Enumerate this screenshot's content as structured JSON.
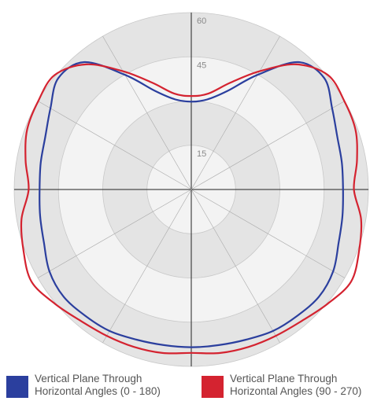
{
  "chart_data": {
    "type": "polar",
    "radial_axis": {
      "min": 0,
      "max": 60,
      "ticks": [
        15,
        45,
        60
      ],
      "grid": [
        15,
        30,
        45,
        60
      ]
    },
    "angular_grid_step_deg": 30,
    "angle_convention": "0 deg at bottom (nadir), 180 deg at top",
    "series": [
      {
        "name": "Vertical Plane Through\nHorizontal Angles (0 - 180)",
        "color": "#2b3f9e",
        "angles": [
          0,
          10,
          20,
          30,
          40,
          50,
          60,
          70,
          80,
          90,
          100,
          110,
          120,
          130,
          140,
          150,
          160,
          170,
          180
        ],
        "values": [
          53.5,
          53.6,
          54.2,
          55.4,
          55.9,
          56.5,
          55.5,
          53.1,
          52.0,
          51.4,
          51.8,
          52.6,
          55.1,
          58.8,
          56.4,
          44.9,
          35.5,
          31.0,
          29.8
        ]
      },
      {
        "name": "Vertical Plane Through\nHorizontal Angles (90 - 270)",
        "color": "#d42330",
        "angles": [
          0,
          10,
          20,
          30,
          40,
          50,
          60,
          70,
          80,
          90,
          100,
          110,
          120,
          130,
          140,
          150,
          160,
          170,
          180
        ],
        "values": [
          55.4,
          56.3,
          56.8,
          57.3,
          58.2,
          60.3,
          62.5,
          60.5,
          58.4,
          55.1,
          57.0,
          59.2,
          59.9,
          60.4,
          55.4,
          46.3,
          38.5,
          33.0,
          31.7
        ]
      }
    ]
  }
}
